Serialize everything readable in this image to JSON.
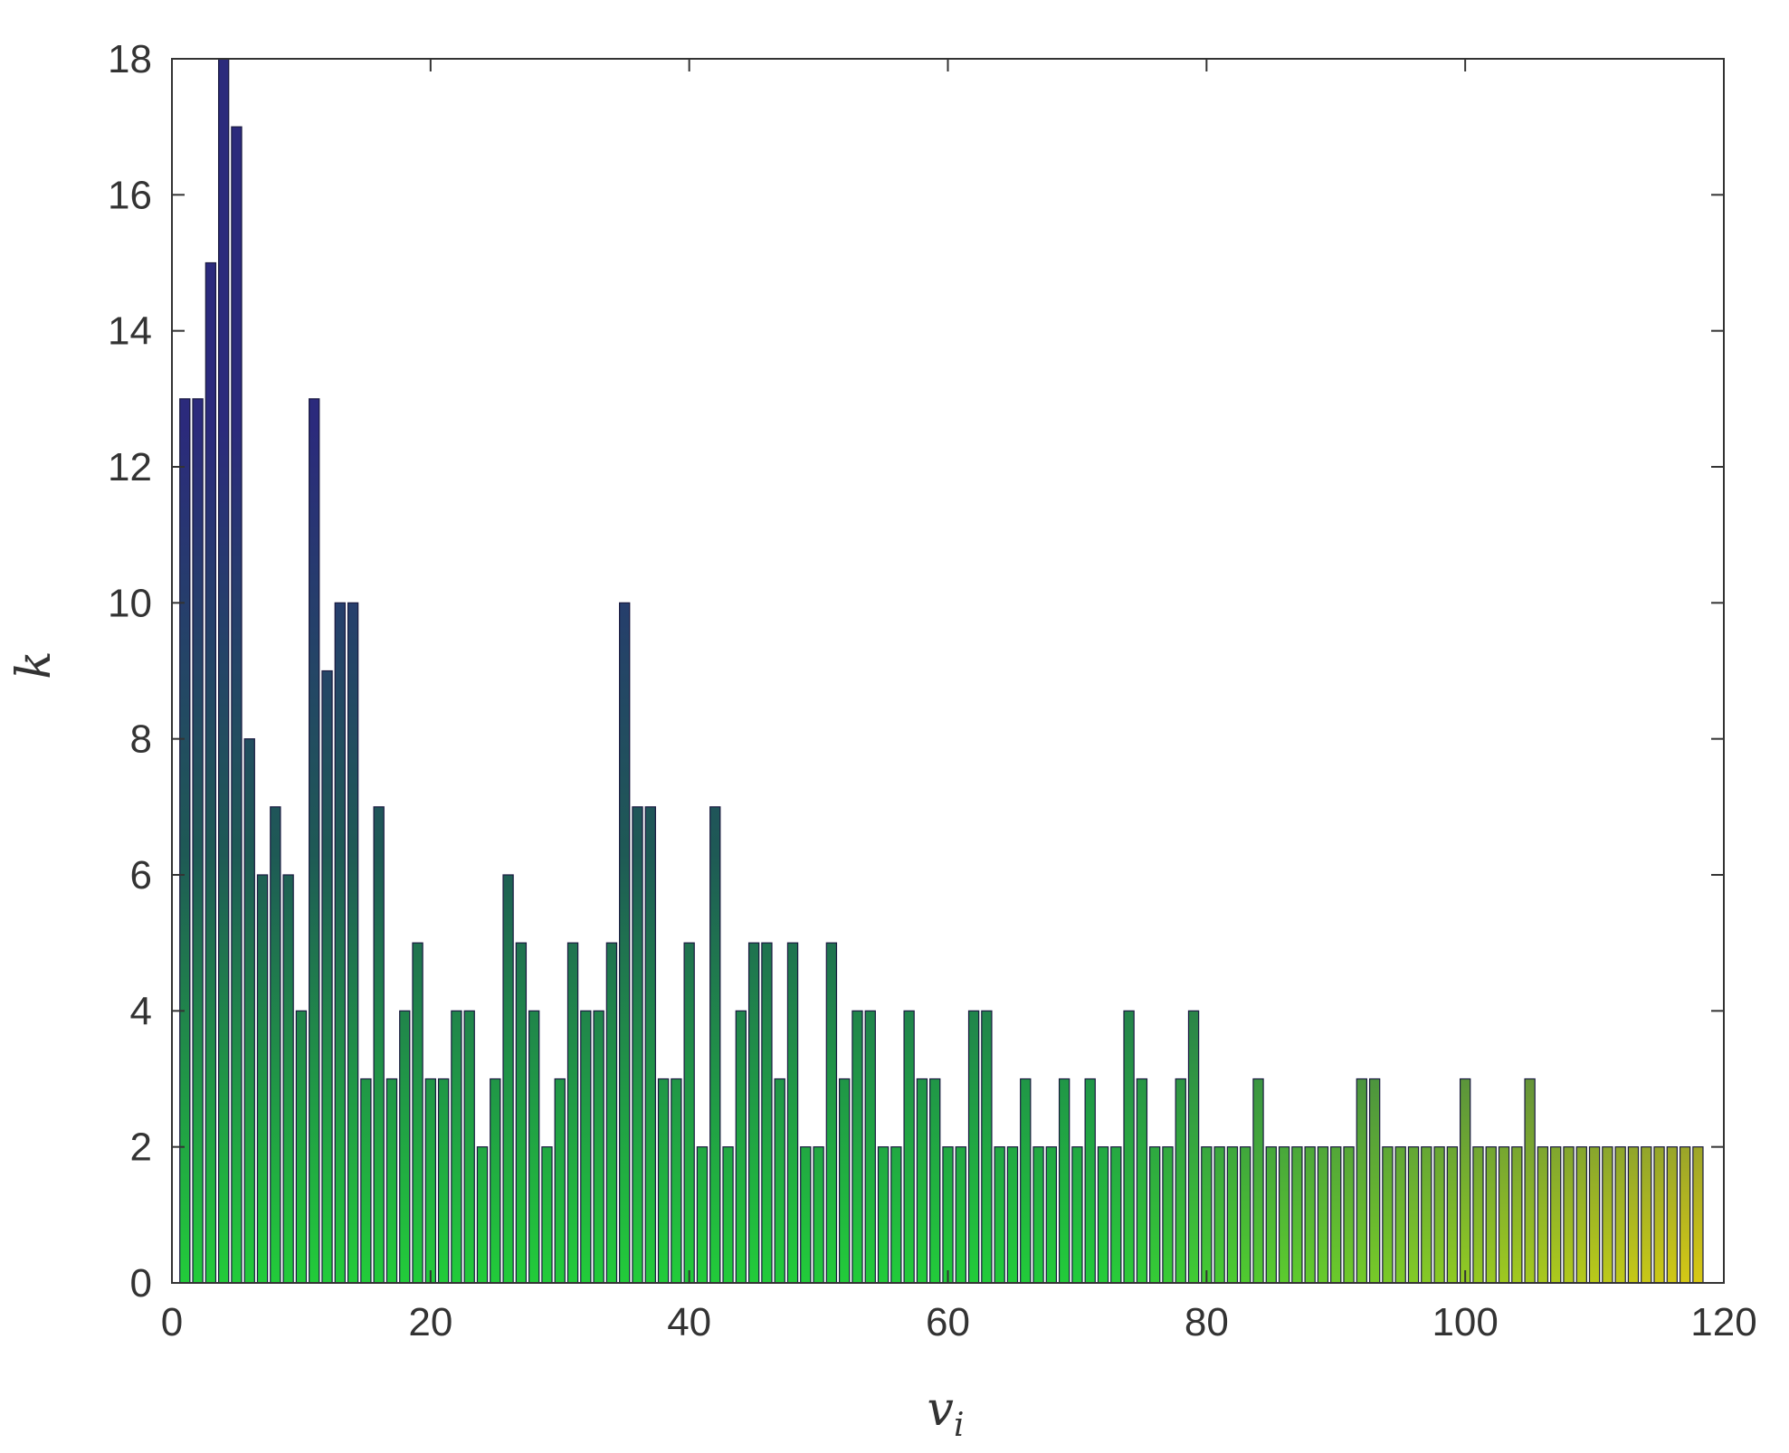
{
  "chart_data": {
    "type": "bar",
    "title": "",
    "xlabel": "v",
    "xlabel_subscript": "i",
    "ylabel": "k",
    "xlim": [
      0,
      120
    ],
    "ylim": [
      0,
      18
    ],
    "xticks": [
      0,
      20,
      40,
      60,
      80,
      100,
      120
    ],
    "yticks": [
      0,
      2,
      4,
      6,
      8,
      10,
      12,
      14,
      16,
      18
    ],
    "grid": false,
    "legend": "none",
    "x": [
      1,
      2,
      3,
      4,
      5,
      6,
      7,
      8,
      9,
      10,
      11,
      12,
      13,
      14,
      15,
      16,
      17,
      18,
      19,
      20,
      21,
      22,
      23,
      24,
      25,
      26,
      27,
      28,
      29,
      30,
      31,
      32,
      33,
      34,
      35,
      36,
      37,
      38,
      39,
      40,
      41,
      42,
      43,
      44,
      45,
      46,
      47,
      48,
      49,
      50,
      51,
      52,
      53,
      54,
      55,
      56,
      57,
      58,
      59,
      60,
      61,
      62,
      63,
      64,
      65,
      66,
      67,
      68,
      69,
      70,
      71,
      72,
      73,
      74,
      75,
      76,
      77,
      78,
      79,
      80,
      81,
      82,
      83,
      84,
      85,
      86,
      87,
      88,
      89,
      90,
      91,
      92,
      93,
      94,
      95,
      96,
      97,
      98,
      99,
      100,
      101,
      102,
      103,
      104,
      105,
      106,
      107,
      108,
      109,
      110,
      111,
      112,
      113,
      114,
      115,
      116,
      117,
      118
    ],
    "values": [
      13,
      13,
      15,
      18,
      17,
      8,
      6,
      7,
      6,
      4,
      13,
      9,
      10,
      10,
      3,
      7,
      3,
      4,
      5,
      3,
      3,
      4,
      4,
      2,
      3,
      6,
      5,
      4,
      2,
      3,
      5,
      4,
      4,
      5,
      10,
      7,
      7,
      3,
      3,
      5,
      2,
      7,
      2,
      4,
      5,
      5,
      3,
      5,
      2,
      2,
      5,
      3,
      4,
      4,
      2,
      2,
      4,
      3,
      3,
      2,
      2,
      4,
      4,
      2,
      2,
      3,
      2,
      2,
      3,
      2,
      3,
      2,
      2,
      4,
      3,
      2,
      2,
      3,
      4,
      2,
      2,
      2,
      2,
      3,
      2,
      2,
      2,
      2,
      2,
      2,
      2,
      3,
      3,
      2,
      2,
      2,
      2,
      2,
      2,
      3,
      2,
      2,
      2,
      2,
      3,
      2,
      2,
      2,
      2,
      2,
      2,
      2,
      2,
      2,
      2,
      2,
      2,
      2
    ],
    "colors": {
      "bar_top": "#2b2a7c",
      "bar_mid": "#1e5a55",
      "bar_bottom": "#22cc3a",
      "bar_right_bottom": "#d8c814",
      "bar_right_top": "#6b3a86",
      "axis": "#333333",
      "background": "#ffffff"
    }
  }
}
